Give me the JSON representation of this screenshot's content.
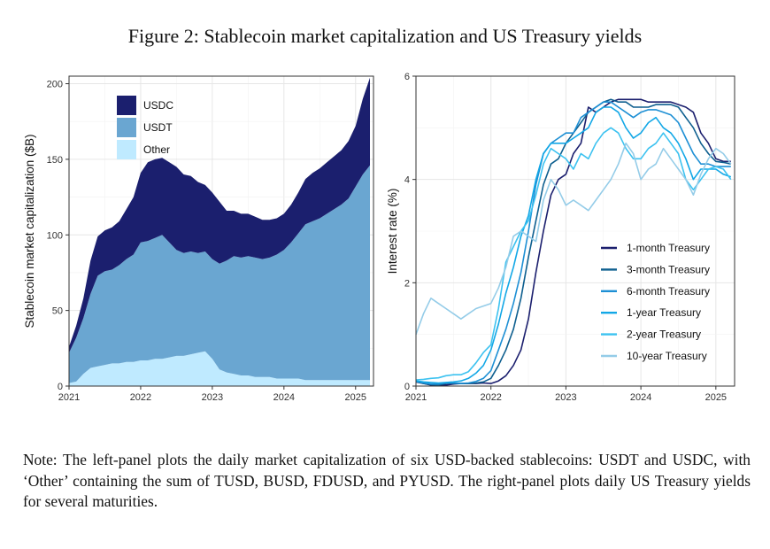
{
  "figure": {
    "title": "Figure 2: Stablecoin market capitalization and US Treasury yields",
    "note": "Note: The left-panel plots the daily market capitalization of six USD-backed stablecoins: USDT and USDC, with ‘Other’ containing the sum of TUSD, BUSD, FDUSD, and PYUSD. The right-panel plots daily US Treasury yields for several maturities."
  },
  "chart_data": [
    {
      "type": "area",
      "stacked": true,
      "ylabel": "Stablecoin market capitalization ($B)",
      "xlabel": "",
      "xlim": [
        2021.0,
        2025.25
      ],
      "ylim": [
        0,
        205
      ],
      "x_ticks": [
        "2021",
        "2022",
        "2023",
        "2024",
        "2025"
      ],
      "y_ticks": [
        "0",
        "50",
        "100",
        "150",
        "200"
      ],
      "grid": true,
      "legend_position": "top-left",
      "x": [
        2021.0,
        2021.1,
        2021.2,
        2021.3,
        2021.4,
        2021.5,
        2021.6,
        2021.7,
        2021.8,
        2021.9,
        2022.0,
        2022.1,
        2022.2,
        2022.3,
        2022.4,
        2022.5,
        2022.6,
        2022.7,
        2022.8,
        2022.9,
        2023.0,
        2023.1,
        2023.2,
        2023.3,
        2023.4,
        2023.5,
        2023.6,
        2023.7,
        2023.8,
        2023.9,
        2024.0,
        2024.1,
        2024.2,
        2024.3,
        2024.4,
        2024.5,
        2024.6,
        2024.7,
        2024.8,
        2024.9,
        2025.0,
        2025.1,
        2025.2
      ],
      "series": [
        {
          "name": "Other",
          "color": "#bfeaff",
          "values": [
            2,
            3,
            8,
            12,
            13,
            14,
            15,
            15,
            16,
            16,
            17,
            17,
            18,
            18,
            19,
            20,
            20,
            21,
            22,
            23,
            18,
            11,
            9,
            8,
            7,
            7,
            6,
            6,
            6,
            5,
            5,
            5,
            5,
            4,
            4,
            4,
            4,
            4,
            4,
            4,
            4,
            4,
            4
          ]
        },
        {
          "name": "USDT",
          "color": "#6aa6d1",
          "values": [
            20,
            29,
            37,
            49,
            60,
            62,
            62,
            65,
            68,
            71,
            78,
            79,
            80,
            82,
            76,
            70,
            68,
            68,
            66,
            66,
            66,
            70,
            74,
            78,
            78,
            79,
            79,
            78,
            79,
            82,
            85,
            90,
            96,
            103,
            105,
            107,
            110,
            113,
            116,
            120,
            128,
            136,
            142
          ]
        },
        {
          "name": "USDC",
          "color": "#1b1f6e",
          "values": [
            4,
            8,
            13,
            22,
            26,
            27,
            28,
            29,
            33,
            38,
            46,
            52,
            52,
            51,
            53,
            55,
            52,
            50,
            47,
            44,
            44,
            41,
            33,
            30,
            29,
            28,
            27,
            26,
            25,
            24,
            24,
            25,
            27,
            30,
            32,
            33,
            34,
            35,
            36,
            38,
            40,
            50,
            58
          ]
        }
      ]
    },
    {
      "type": "line",
      "ylabel": "Interest rate (%)",
      "xlabel": "",
      "xlim": [
        2021.0,
        2025.25
      ],
      "ylim": [
        0,
        6
      ],
      "x_ticks": [
        "2021",
        "2022",
        "2023",
        "2024",
        "2025"
      ],
      "y_ticks": [
        "0",
        "2",
        "4",
        "6"
      ],
      "grid": true,
      "legend_position": "bottom-right",
      "x": [
        2021.0,
        2021.1,
        2021.2,
        2021.3,
        2021.4,
        2021.5,
        2021.6,
        2021.7,
        2021.8,
        2021.9,
        2022.0,
        2022.1,
        2022.2,
        2022.3,
        2022.4,
        2022.5,
        2022.6,
        2022.7,
        2022.8,
        2022.9,
        2023.0,
        2023.1,
        2023.2,
        2023.3,
        2023.4,
        2023.5,
        2023.6,
        2023.7,
        2023.8,
        2023.9,
        2024.0,
        2024.1,
        2024.2,
        2024.3,
        2024.4,
        2024.5,
        2024.6,
        2024.7,
        2024.8,
        2024.9,
        2025.0,
        2025.1,
        2025.2
      ],
      "series": [
        {
          "name": "1-month Treasury",
          "color": "#1b1f6e",
          "values": [
            0.08,
            0.05,
            0.02,
            0.02,
            0.02,
            0.04,
            0.05,
            0.05,
            0.05,
            0.06,
            0.05,
            0.1,
            0.2,
            0.4,
            0.7,
            1.3,
            2.2,
            3.0,
            3.7,
            4.0,
            4.1,
            4.5,
            4.7,
            5.4,
            5.3,
            5.4,
            5.5,
            5.55,
            5.55,
            5.55,
            5.55,
            5.5,
            5.5,
            5.5,
            5.5,
            5.45,
            5.4,
            5.3,
            4.9,
            4.7,
            4.4,
            4.35,
            4.35
          ]
        },
        {
          "name": "3-month Treasury",
          "color": "#0e5f8f",
          "values": [
            0.09,
            0.05,
            0.03,
            0.02,
            0.05,
            0.05,
            0.05,
            0.05,
            0.06,
            0.08,
            0.15,
            0.4,
            0.7,
            1.1,
            1.7,
            2.5,
            3.2,
            3.9,
            4.3,
            4.4,
            4.7,
            4.9,
            5.1,
            5.3,
            5.4,
            5.5,
            5.55,
            5.5,
            5.5,
            5.4,
            5.4,
            5.4,
            5.45,
            5.45,
            5.45,
            5.4,
            5.2,
            5.0,
            4.7,
            4.5,
            4.35,
            4.33,
            4.3
          ]
        },
        {
          "name": "6-month Treasury",
          "color": "#1d8fd4",
          "values": [
            0.09,
            0.06,
            0.04,
            0.04,
            0.06,
            0.06,
            0.05,
            0.06,
            0.09,
            0.15,
            0.3,
            0.7,
            1.1,
            1.6,
            2.2,
            3.0,
            3.9,
            4.5,
            4.7,
            4.8,
            4.9,
            4.9,
            5.2,
            5.3,
            5.4,
            5.5,
            5.5,
            5.4,
            5.3,
            5.2,
            5.3,
            5.35,
            5.35,
            5.3,
            5.25,
            5.1,
            4.8,
            4.5,
            4.3,
            4.3,
            4.25,
            4.25,
            4.25
          ]
        },
        {
          "name": "1-year Treasury",
          "color": "#12a7e6",
          "values": [
            0.1,
            0.08,
            0.07,
            0.06,
            0.07,
            0.08,
            0.1,
            0.15,
            0.25,
            0.4,
            0.7,
            1.2,
            1.8,
            2.3,
            2.9,
            3.3,
            4.0,
            4.5,
            4.7,
            4.7,
            4.7,
            4.8,
            4.9,
            5.0,
            5.3,
            5.4,
            5.4,
            5.3,
            5.0,
            4.8,
            4.9,
            5.1,
            5.2,
            5.0,
            4.9,
            4.7,
            4.4,
            4.0,
            4.2,
            4.2,
            4.2,
            4.1,
            4.05
          ]
        },
        {
          "name": "2-year Treasury",
          "color": "#3cc2f0",
          "values": [
            0.12,
            0.13,
            0.15,
            0.16,
            0.2,
            0.22,
            0.22,
            0.28,
            0.45,
            0.65,
            0.8,
            1.5,
            2.4,
            2.7,
            3.0,
            3.2,
            3.7,
            4.3,
            4.6,
            4.5,
            4.4,
            4.2,
            4.5,
            4.4,
            4.7,
            4.9,
            5.0,
            4.9,
            4.6,
            4.4,
            4.4,
            4.6,
            4.7,
            4.9,
            4.7,
            4.5,
            4.0,
            3.8,
            4.0,
            4.2,
            4.25,
            4.2,
            4.0
          ]
        },
        {
          "name": "10-year Treasury",
          "color": "#94cce8",
          "values": [
            1.0,
            1.4,
            1.7,
            1.6,
            1.5,
            1.4,
            1.3,
            1.4,
            1.5,
            1.55,
            1.6,
            1.9,
            2.3,
            2.9,
            3.0,
            2.9,
            2.8,
            3.6,
            4.0,
            3.8,
            3.5,
            3.6,
            3.5,
            3.4,
            3.6,
            3.8,
            4.0,
            4.3,
            4.7,
            4.5,
            4.0,
            4.2,
            4.3,
            4.6,
            4.4,
            4.2,
            4.0,
            3.7,
            4.1,
            4.4,
            4.6,
            4.5,
            4.3
          ]
        }
      ]
    }
  ]
}
